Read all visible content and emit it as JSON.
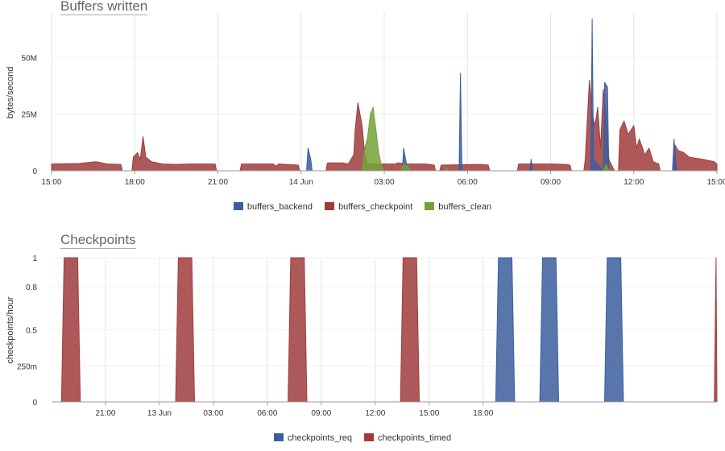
{
  "charts": [
    {
      "title": "Buffers written",
      "ylabel": "bytes/second",
      "y_ticks": [
        "0",
        "25M",
        "50M"
      ],
      "x_ticks": [
        "15:00",
        "18:00",
        "21:00",
        "14 Jun",
        "03:00",
        "06:00",
        "09:00",
        "12:00",
        "15:00"
      ],
      "legend": [
        {
          "label": "buffers_backend",
          "color": "#3b5e9e"
        },
        {
          "label": "buffers_checkpoint",
          "color": "#a03c3c"
        },
        {
          "label": "buffers_clean",
          "color": "#76a23a"
        }
      ]
    },
    {
      "title": "Checkpoints",
      "ylabel": "checkpoints/hour",
      "y_ticks": [
        "0",
        "250m",
        "0.5",
        "0.8",
        "1"
      ],
      "x_ticks": [
        "21:00",
        "13 Jun",
        "03:00",
        "06:00",
        "09:00",
        "12:00",
        "15:00",
        "18:00"
      ],
      "legend": [
        {
          "label": "checkpoints_req",
          "color": "#3b5e9e"
        },
        {
          "label": "checkpoints_timed",
          "color": "#a03c3c"
        }
      ]
    }
  ],
  "chart_data": [
    {
      "type": "area",
      "title": "Buffers written",
      "xlabel": "",
      "ylabel": "bytes/second",
      "x_unit": "hours from first x tick (15:00)",
      "ylim": [
        0,
        70000000
      ],
      "grid": true,
      "legend_position": "bottom",
      "series": [
        {
          "name": "buffers_checkpoint",
          "color": "#a03c3c",
          "points": [
            [
              0,
              3000000
            ],
            [
              1,
              3200000
            ],
            [
              1.6,
              4000000
            ],
            [
              2,
              3000000
            ],
            [
              2.5,
              2800000
            ],
            [
              2.55,
              0
            ],
            [
              2.9,
              0
            ],
            [
              2.95,
              6000000
            ],
            [
              3.1,
              8000000
            ],
            [
              3.2,
              5000000
            ],
            [
              3.3,
              15000000
            ],
            [
              3.4,
              6000000
            ],
            [
              3.6,
              4000000
            ],
            [
              4.0,
              3000000
            ],
            [
              4.5,
              2800000
            ],
            [
              5.0,
              3000000
            ],
            [
              5.5,
              3000000
            ],
            [
              5.9,
              3000000
            ],
            [
              5.95,
              0
            ],
            [
              6.8,
              0
            ],
            [
              6.85,
              3000000
            ],
            [
              7.5,
              3000000
            ],
            [
              8.0,
              3000000
            ],
            [
              8.1,
              2000000
            ],
            [
              8.2,
              3000000
            ],
            [
              8.9,
              2500000
            ],
            [
              8.95,
              0
            ],
            [
              9.9,
              0
            ],
            [
              9.95,
              3500000
            ],
            [
              10.5,
              3500000
            ],
            [
              10.7,
              3000000
            ],
            [
              10.9,
              7000000
            ],
            [
              10.95,
              18000000
            ],
            [
              11.05,
              30000000
            ],
            [
              11.2,
              20000000
            ],
            [
              11.3,
              7000000
            ],
            [
              11.4,
              3000000
            ],
            [
              12.0,
              3000000
            ],
            [
              12.4,
              3000000
            ],
            [
              12.5,
              3500000
            ],
            [
              12.8,
              3000000
            ],
            [
              13.3,
              3000000
            ],
            [
              13.5,
              3000000
            ],
            [
              13.8,
              2500000
            ],
            [
              13.85,
              0
            ],
            [
              14.0,
              0
            ],
            [
              14.05,
              2500000
            ],
            [
              15.5,
              2800000
            ],
            [
              15.75,
              2500000
            ],
            [
              15.8,
              0
            ],
            [
              16.8,
              0
            ],
            [
              16.85,
              3000000
            ],
            [
              18.0,
              3000000
            ],
            [
              18.5,
              2800000
            ],
            [
              18.7,
              2500000
            ],
            [
              18.75,
              0
            ],
            [
              19.2,
              0
            ],
            [
              19.25,
              5000000
            ],
            [
              19.4,
              40000000
            ],
            [
              19.5,
              25000000
            ],
            [
              19.6,
              20000000
            ],
            [
              19.7,
              28000000
            ],
            [
              19.8,
              10000000
            ],
            [
              19.9,
              36000000
            ],
            [
              20.0,
              25000000
            ],
            [
              20.1,
              5000000
            ],
            [
              20.3,
              0
            ],
            [
              20.45,
              0
            ],
            [
              20.5,
              18000000
            ],
            [
              20.65,
              22000000
            ],
            [
              20.8,
              16000000
            ],
            [
              21.0,
              20000000
            ],
            [
              21.1,
              10000000
            ],
            [
              21.2,
              14000000
            ],
            [
              21.4,
              7000000
            ],
            [
              21.55,
              10000000
            ],
            [
              21.7,
              4000000
            ],
            [
              21.9,
              3000000
            ],
            [
              21.95,
              0
            ],
            [
              22.4,
              0
            ],
            [
              22.45,
              12000000
            ],
            [
              22.6,
              9000000
            ],
            [
              22.8,
              8000000
            ],
            [
              23.0,
              6000000
            ],
            [
              23.5,
              5000000
            ],
            [
              23.9,
              4000000
            ],
            [
              24.0,
              3000000
            ]
          ]
        },
        {
          "name": "buffers_backend",
          "color": "#3b5e9e",
          "points": [
            [
              0,
              0
            ],
            [
              9.2,
              0
            ],
            [
              9.25,
              10000000
            ],
            [
              9.35,
              5000000
            ],
            [
              9.4,
              0
            ],
            [
              12.65,
              0
            ],
            [
              12.7,
              10000000
            ],
            [
              12.8,
              3000000
            ],
            [
              12.85,
              0
            ],
            [
              14.7,
              0
            ],
            [
              14.75,
              43000000
            ],
            [
              14.8,
              0
            ],
            [
              17.25,
              0
            ],
            [
              17.3,
              5000000
            ],
            [
              17.35,
              0
            ],
            [
              19.45,
              0
            ],
            [
              19.5,
              67000000
            ],
            [
              19.55,
              5000000
            ],
            [
              19.9,
              0
            ],
            [
              19.95,
              39000000
            ],
            [
              20.05,
              37000000
            ],
            [
              20.1,
              0
            ],
            [
              22.4,
              0
            ],
            [
              22.45,
              14000000
            ],
            [
              22.55,
              0
            ],
            [
              24.0,
              0
            ]
          ]
        },
        {
          "name": "buffers_clean",
          "color": "#76a23a",
          "points": [
            [
              0,
              0
            ],
            [
              11.2,
              0
            ],
            [
              11.3,
              10000000
            ],
            [
              11.4,
              15000000
            ],
            [
              11.5,
              25000000
            ],
            [
              11.6,
              28000000
            ],
            [
              11.7,
              18000000
            ],
            [
              11.8,
              8000000
            ],
            [
              11.9,
              2000000
            ],
            [
              12.0,
              0
            ],
            [
              12.6,
              0
            ],
            [
              12.7,
              3000000
            ],
            [
              12.85,
              2000000
            ],
            [
              12.95,
              0
            ],
            [
              14.2,
              0
            ],
            [
              14.25,
              1000000
            ],
            [
              14.3,
              0
            ],
            [
              19.9,
              0
            ],
            [
              20.0,
              3000000
            ],
            [
              20.1,
              0
            ],
            [
              24.0,
              0
            ]
          ]
        }
      ]
    },
    {
      "type": "area",
      "title": "Checkpoints",
      "xlabel": "",
      "ylabel": "checkpoints/hour",
      "x_unit": "hours after 21:00 tick",
      "ylim": [
        0,
        1
      ],
      "grid": true,
      "legend_position": "bottom",
      "series": [
        {
          "name": "checkpoints_timed",
          "color": "#a03c3c",
          "points": [
            [
              -2.45,
              0
            ],
            [
              -2.3,
              1
            ],
            [
              -1.55,
              1
            ],
            [
              -1.4,
              0
            ],
            [
              3.9,
              0
            ],
            [
              4.05,
              1
            ],
            [
              4.8,
              1
            ],
            [
              4.95,
              0
            ],
            [
              10.15,
              0
            ],
            [
              10.3,
              1
            ],
            [
              11.05,
              1
            ],
            [
              11.2,
              0
            ],
            [
              16.4,
              0
            ],
            [
              16.55,
              1
            ],
            [
              17.3,
              1
            ],
            [
              17.45,
              0
            ],
            [
              33.85,
              0
            ],
            [
              33.95,
              1
            ],
            [
              34.0,
              0
            ]
          ]
        },
        {
          "name": "checkpoints_req",
          "color": "#3b5e9e",
          "points": [
            [
              21.7,
              0
            ],
            [
              21.85,
              1
            ],
            [
              22.6,
              1
            ],
            [
              22.75,
              0
            ],
            [
              24.15,
              0
            ],
            [
              24.3,
              1
            ],
            [
              25.05,
              1
            ],
            [
              25.2,
              0
            ],
            [
              27.75,
              0
            ],
            [
              27.9,
              1
            ],
            [
              28.65,
              1
            ],
            [
              28.8,
              0
            ]
          ]
        }
      ]
    }
  ]
}
